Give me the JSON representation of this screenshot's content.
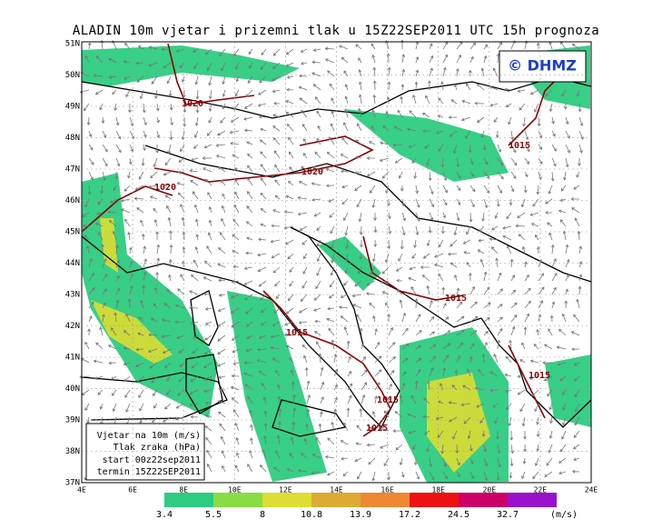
{
  "title": "ALADIN 10m vjetar i prizemni tlak u 15Z22SEP2011 UTC 15h prognoza",
  "logo": "© DHMZ",
  "lat_labels": [
    "51N",
    "50N",
    "49N",
    "48N",
    "47N",
    "46N",
    "45N",
    "44N",
    "43N",
    "42N",
    "41N",
    "40N",
    "39N",
    "38N",
    "37N"
  ],
  "lon_labels": [
    "4E",
    "6E",
    "8E",
    "10E",
    "12E",
    "14E",
    "16E",
    "18E",
    "20E",
    "22E",
    "24E"
  ],
  "isobar_labels": [
    "1020",
    "1020",
    "1020",
    "1015",
    "1015",
    "1015",
    "1015",
    "1015",
    "1015"
  ],
  "info_box": [
    "Vjetar na 10m (m/s)",
    "Tlak zraka (hPa)",
    "start 00z22sep2011",
    "termin 15Z22SEP2011"
  ],
  "legend": {
    "labels": [
      3.4,
      5.5,
      8,
      10.8,
      13.9,
      17.2,
      24.5,
      32.7
    ],
    "colors": [
      "#2dcc80",
      "#88dd44",
      "#dddd33",
      "#ddaa33",
      "#ee8833",
      "#ee1111",
      "#cc0066",
      "#9911cc"
    ],
    "unit": "(m/s)"
  }
}
